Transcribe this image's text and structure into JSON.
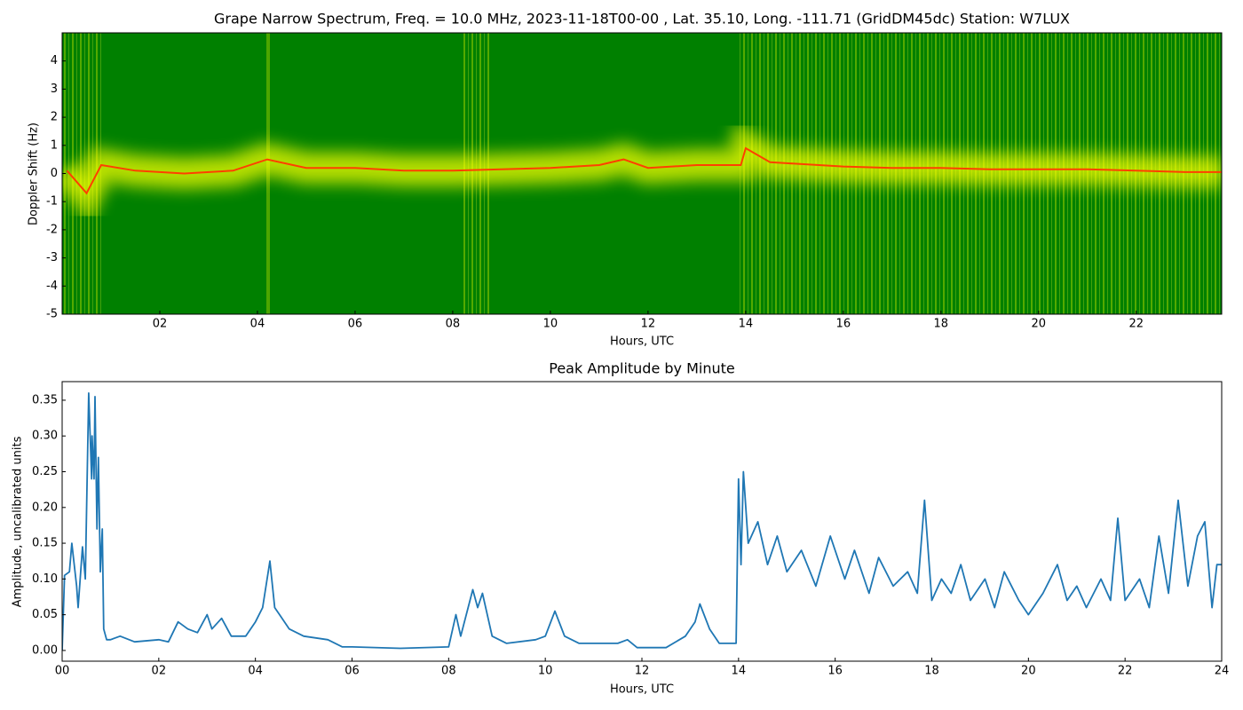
{
  "chart_data": [
    {
      "type": "spectrogram",
      "title": "Grape Narrow Spectrum, Freq. = 10.0 MHz, 2023-11-18T00-00 , Lat.  35.10, Long. -111.71 (GridDM45dc) Station: W7LUX",
      "x_label": "Hours, UTC",
      "y_label": "Doppler Shift (Hz)",
      "x": [
        0.1,
        0.5,
        0.8,
        1.5,
        2.5,
        3.5,
        4.2,
        5,
        6,
        7,
        8,
        9,
        10,
        11,
        11.5,
        12,
        13,
        13.9,
        14,
        14.5,
        15,
        16,
        17,
        18,
        19,
        20,
        21,
        22,
        23,
        23.75
      ],
      "values": [
        0.1,
        -0.7,
        0.3,
        0.1,
        0,
        0.1,
        0.5,
        0.2,
        0.2,
        0.1,
        0.1,
        0.15,
        0.2,
        0.3,
        0.5,
        0.2,
        0.3,
        0.3,
        0.9,
        0.4,
        0.35,
        0.25,
        0.2,
        0.2,
        0.15,
        0.15,
        0.15,
        0.1,
        0.05,
        0.05
      ],
      "color": "#ff4000",
      "xlim": [
        0,
        23.75
      ],
      "ylim": [
        -5,
        5
      ],
      "xticks": [
        {
          "value": 2,
          "label": "02"
        },
        {
          "value": 4,
          "label": "04"
        },
        {
          "value": 6,
          "label": "06"
        },
        {
          "value": 8,
          "label": "08"
        },
        {
          "value": 10,
          "label": "10"
        },
        {
          "value": 12,
          "label": "12"
        },
        {
          "value": 14,
          "label": "14"
        },
        {
          "value": 16,
          "label": "16"
        },
        {
          "value": 18,
          "label": "18"
        },
        {
          "value": 20,
          "label": "20"
        },
        {
          "value": 22,
          "label": "22"
        }
      ],
      "yticks": [
        -5,
        -4,
        -3,
        -2,
        -1,
        0,
        1,
        2,
        3,
        4
      ]
    },
    {
      "type": "line",
      "title": "Peak Amplitude by Minute",
      "x_label": "Hours, UTC",
      "y_label": "Amplitude, uncalibrated units",
      "x": [
        0,
        0.05,
        0.15,
        0.2,
        0.3,
        0.33,
        0.42,
        0.48,
        0.55,
        0.61,
        0.62,
        0.66,
        0.68,
        0.72,
        0.75,
        0.79,
        0.83,
        0.86,
        0.92,
        1.0,
        1.2,
        1.5,
        2.0,
        2.2,
        2.4,
        2.6,
        2.8,
        3.0,
        3.1,
        3.3,
        3.5,
        3.8,
        4.0,
        4.15,
        4.3,
        4.4,
        4.5,
        4.7,
        5.0,
        5.5,
        5.8,
        6.0,
        7.0,
        8.0,
        8.15,
        8.25,
        8.5,
        8.6,
        8.7,
        8.9,
        9.2,
        9.8,
        10.0,
        10.2,
        10.4,
        10.7,
        11.5,
        11.7,
        11.9,
        12.5,
        12.9,
        13.1,
        13.2,
        13.4,
        13.6,
        13.95,
        14.0,
        14.05,
        14.1,
        14.2,
        14.4,
        14.6,
        14.8,
        15.0,
        15.3,
        15.6,
        15.9,
        16.2,
        16.4,
        16.7,
        16.9,
        17.2,
        17.5,
        17.7,
        17.85,
        18.0,
        18.2,
        18.4,
        18.6,
        18.8,
        19.1,
        19.3,
        19.5,
        19.8,
        20.0,
        20.3,
        20.6,
        20.8,
        21.0,
        21.2,
        21.5,
        21.7,
        21.85,
        22.0,
        22.3,
        22.5,
        22.7,
        22.9,
        23.1,
        23.3,
        23.5,
        23.65,
        23.8,
        23.9,
        24.0
      ],
      "values": [
        0.0,
        0.105,
        0.11,
        0.15,
        0.09,
        0.06,
        0.145,
        0.1,
        0.36,
        0.24,
        0.3,
        0.24,
        0.355,
        0.17,
        0.27,
        0.11,
        0.17,
        0.03,
        0.015,
        0.015,
        0.02,
        0.012,
        0.015,
        0.012,
        0.04,
        0.03,
        0.025,
        0.05,
        0.03,
        0.045,
        0.02,
        0.02,
        0.04,
        0.06,
        0.125,
        0.06,
        0.05,
        0.03,
        0.02,
        0.015,
        0.005,
        0.005,
        0.003,
        0.005,
        0.05,
        0.02,
        0.085,
        0.06,
        0.08,
        0.02,
        0.01,
        0.015,
        0.02,
        0.055,
        0.02,
        0.01,
        0.01,
        0.015,
        0.004,
        0.004,
        0.02,
        0.04,
        0.065,
        0.03,
        0.01,
        0.01,
        0.24,
        0.12,
        0.25,
        0.15,
        0.18,
        0.12,
        0.16,
        0.11,
        0.14,
        0.09,
        0.16,
        0.1,
        0.14,
        0.08,
        0.13,
        0.09,
        0.11,
        0.08,
        0.21,
        0.07,
        0.1,
        0.08,
        0.12,
        0.07,
        0.1,
        0.06,
        0.11,
        0.07,
        0.05,
        0.08,
        0.12,
        0.07,
        0.09,
        0.06,
        0.1,
        0.07,
        0.185,
        0.07,
        0.1,
        0.06,
        0.16,
        0.08,
        0.21,
        0.09,
        0.16,
        0.18,
        0.06,
        0.12,
        0.12
      ],
      "color": "#1f77b4",
      "xlim": [
        0,
        24
      ],
      "ylim": [
        -0.015,
        0.376
      ],
      "xticks": [
        {
          "value": 0,
          "label": "00"
        },
        {
          "value": 2,
          "label": "02"
        },
        {
          "value": 4,
          "label": "04"
        },
        {
          "value": 6,
          "label": "06"
        },
        {
          "value": 8,
          "label": "08"
        },
        {
          "value": 10,
          "label": "10"
        },
        {
          "value": 12,
          "label": "12"
        },
        {
          "value": 14,
          "label": "14"
        },
        {
          "value": 16,
          "label": "16"
        },
        {
          "value": 18,
          "label": "18"
        },
        {
          "value": 20,
          "label": "20"
        },
        {
          "value": 22,
          "label": "22"
        },
        {
          "value": 24,
          "label": "24"
        }
      ],
      "yticks": [
        {
          "value": 0,
          "label": "0.00"
        },
        {
          "value": 0.05,
          "label": "0.05"
        },
        {
          "value": 0.1,
          "label": "0.10"
        },
        {
          "value": 0.15,
          "label": "0.15"
        },
        {
          "value": 0.2,
          "label": "0.20"
        },
        {
          "value": 0.25,
          "label": "0.25"
        },
        {
          "value": 0.3,
          "label": "0.30"
        },
        {
          "value": 0.35,
          "label": "0.35"
        }
      ]
    }
  ]
}
